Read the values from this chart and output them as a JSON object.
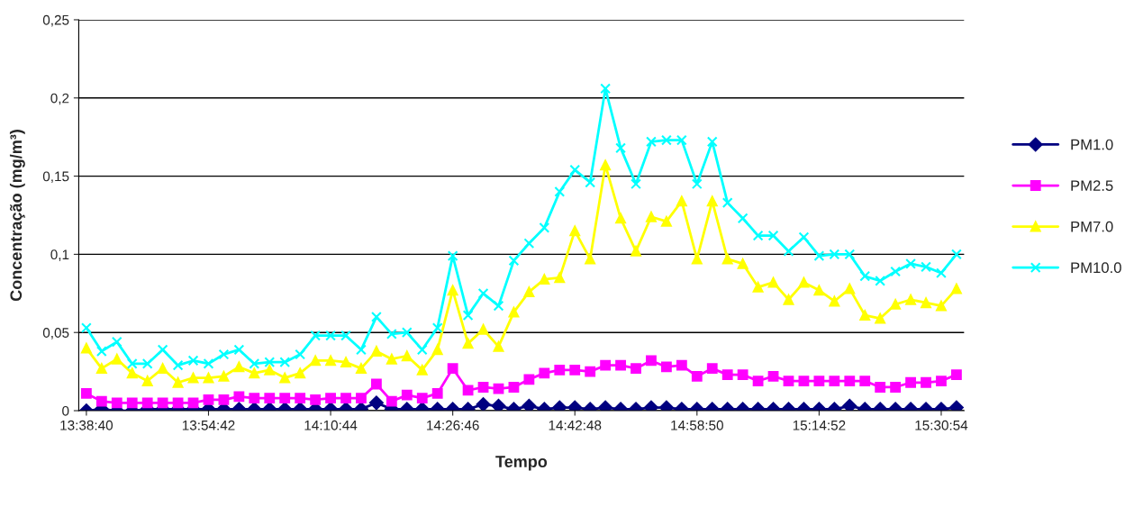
{
  "chart_data": {
    "type": "line",
    "xlabel": "Tempo",
    "ylabel": "Concentração (mg/m³)",
    "categories": [
      "13:38:40",
      null,
      null,
      null,
      null,
      null,
      null,
      null,
      "13:54:42",
      null,
      null,
      null,
      null,
      null,
      null,
      null,
      "14:10:44",
      null,
      null,
      null,
      null,
      null,
      null,
      null,
      "14:26:46",
      null,
      null,
      null,
      null,
      null,
      null,
      null,
      "14:42:48",
      null,
      null,
      null,
      null,
      null,
      null,
      null,
      "14:58:50",
      null,
      null,
      null,
      null,
      null,
      null,
      null,
      "15:14:52",
      null,
      null,
      null,
      null,
      null,
      null,
      null,
      "15:30:54",
      null
    ],
    "ylim": [
      0,
      0.25
    ],
    "yticks": [
      0,
      {
        "value": 0.05,
        "label": "0,05"
      },
      {
        "value": 0.1,
        "label": "0,1"
      },
      {
        "value": 0.15,
        "label": "0,15"
      },
      {
        "value": 0.2,
        "label": "0,2"
      },
      {
        "value": 0.25,
        "label": "0,25"
      }
    ],
    "grid": "y",
    "legend": "right",
    "line_style": "solid",
    "series": [
      {
        "name": "PM1.0",
        "color": "#000080",
        "marker": "diamond",
        "values": [
          0,
          0.001,
          0,
          0,
          0.001,
          0.001,
          0.001,
          0.001,
          0.001,
          0.001,
          0.001,
          0.001,
          0.001,
          0.001,
          0.001,
          0.001,
          0.001,
          0.001,
          0.001,
          0.005,
          0.001,
          0.001,
          0.001,
          0.001,
          0.001,
          0.001,
          0.004,
          0.003,
          0.001,
          0.003,
          0.001,
          0.002,
          0.002,
          0.001,
          0.002,
          0.001,
          0.001,
          0.002,
          0.002,
          0.001,
          0.001,
          0.001,
          0.001,
          0.001,
          0.001,
          0.001,
          0.001,
          0.001,
          0.001,
          0.001,
          0.003,
          0.001,
          0.001,
          0.001,
          0.001,
          0.001,
          0.001,
          0.002
        ]
      },
      {
        "name": "PM2.5",
        "color": "#ff00ff",
        "marker": "square",
        "values": [
          0.011,
          0.006,
          0.005,
          0.005,
          0.005,
          0.005,
          0.005,
          0.005,
          0.007,
          0.007,
          0.009,
          0.008,
          0.008,
          0.008,
          0.008,
          0.007,
          0.008,
          0.008,
          0.008,
          0.017,
          0.006,
          0.01,
          0.008,
          0.011,
          0.027,
          0.013,
          0.015,
          0.014,
          0.015,
          0.02,
          0.024,
          0.026,
          0.026,
          0.025,
          0.029,
          0.029,
          0.027,
          0.032,
          0.028,
          0.029,
          0.022,
          0.027,
          0.023,
          0.023,
          0.019,
          0.022,
          0.019,
          0.019,
          0.019,
          0.019,
          0.019,
          0.019,
          0.015,
          0.015,
          0.018,
          0.018,
          0.019,
          0.023
        ]
      },
      {
        "name": "PM7.0",
        "color": "#ffff00",
        "marker": "triangle",
        "values": [
          0.04,
          0.027,
          0.033,
          0.024,
          0.019,
          0.027,
          0.018,
          0.021,
          0.021,
          0.022,
          0.028,
          0.024,
          0.026,
          0.021,
          0.024,
          0.032,
          0.032,
          0.031,
          0.027,
          0.038,
          0.033,
          0.035,
          0.026,
          0.039,
          0.077,
          0.043,
          0.052,
          0.041,
          0.063,
          0.076,
          0.084,
          0.085,
          0.115,
          0.097,
          0.157,
          0.123,
          0.102,
          0.124,
          0.121,
          0.134,
          0.097,
          0.134,
          0.097,
          0.094,
          0.079,
          0.082,
          0.071,
          0.082,
          0.077,
          0.07,
          0.078,
          0.061,
          0.059,
          0.068,
          0.071,
          0.069,
          0.067,
          0.078
        ]
      },
      {
        "name": "PM10.0",
        "color": "#00ffff",
        "marker": "cross",
        "values": [
          0.053,
          0.038,
          0.044,
          0.03,
          0.03,
          0.039,
          0.029,
          0.032,
          0.03,
          0.036,
          0.039,
          0.03,
          0.031,
          0.031,
          0.036,
          0.048,
          0.048,
          0.048,
          0.039,
          0.06,
          0.049,
          0.05,
          0.039,
          0.053,
          0.099,
          0.061,
          0.075,
          0.067,
          0.096,
          0.107,
          0.117,
          0.14,
          0.154,
          0.146,
          0.206,
          0.168,
          0.145,
          0.172,
          0.173,
          0.173,
          0.145,
          0.172,
          0.133,
          0.123,
          0.112,
          0.112,
          0.102,
          0.111,
          0.099,
          0.1,
          0.1,
          0.086,
          0.083,
          0.089,
          0.094,
          0.092,
          0.088,
          0.1
        ]
      }
    ]
  }
}
